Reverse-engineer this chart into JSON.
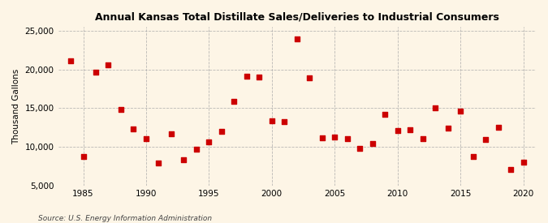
{
  "title": "Annual Kansas Total Distillate Sales/Deliveries to Industrial Consumers",
  "ylabel": "Thousand Gallons",
  "source": "Source: U.S. Energy Information Administration",
  "background_color": "#fdf5e6",
  "marker_color": "#cc0000",
  "xlim": [
    1983,
    2021
  ],
  "ylim": [
    5000,
    25500
  ],
  "yticks": [
    5000,
    10000,
    15000,
    20000,
    25000
  ],
  "xticks": [
    1985,
    1990,
    1995,
    2000,
    2005,
    2010,
    2015,
    2020
  ],
  "years": [
    1984,
    1985,
    1986,
    1987,
    1988,
    1989,
    1990,
    1991,
    1992,
    1993,
    1994,
    1995,
    1996,
    1997,
    1998,
    1999,
    2000,
    2001,
    2002,
    2003,
    2004,
    2005,
    2006,
    2007,
    2008,
    2009,
    2010,
    2011,
    2012,
    2013,
    2014,
    2015,
    2016,
    2017,
    2018,
    2019,
    2020
  ],
  "values": [
    21100,
    8700,
    19700,
    20600,
    14800,
    12300,
    11000,
    7850,
    11700,
    8350,
    9650,
    10650,
    11950,
    15850,
    19100,
    19000,
    13350,
    13300,
    24000,
    18900,
    11150,
    11250,
    11100,
    9800,
    10400,
    14150,
    12100,
    12200,
    11100,
    15050,
    12400,
    14600,
    8700,
    10950,
    12500,
    7100,
    8050
  ]
}
